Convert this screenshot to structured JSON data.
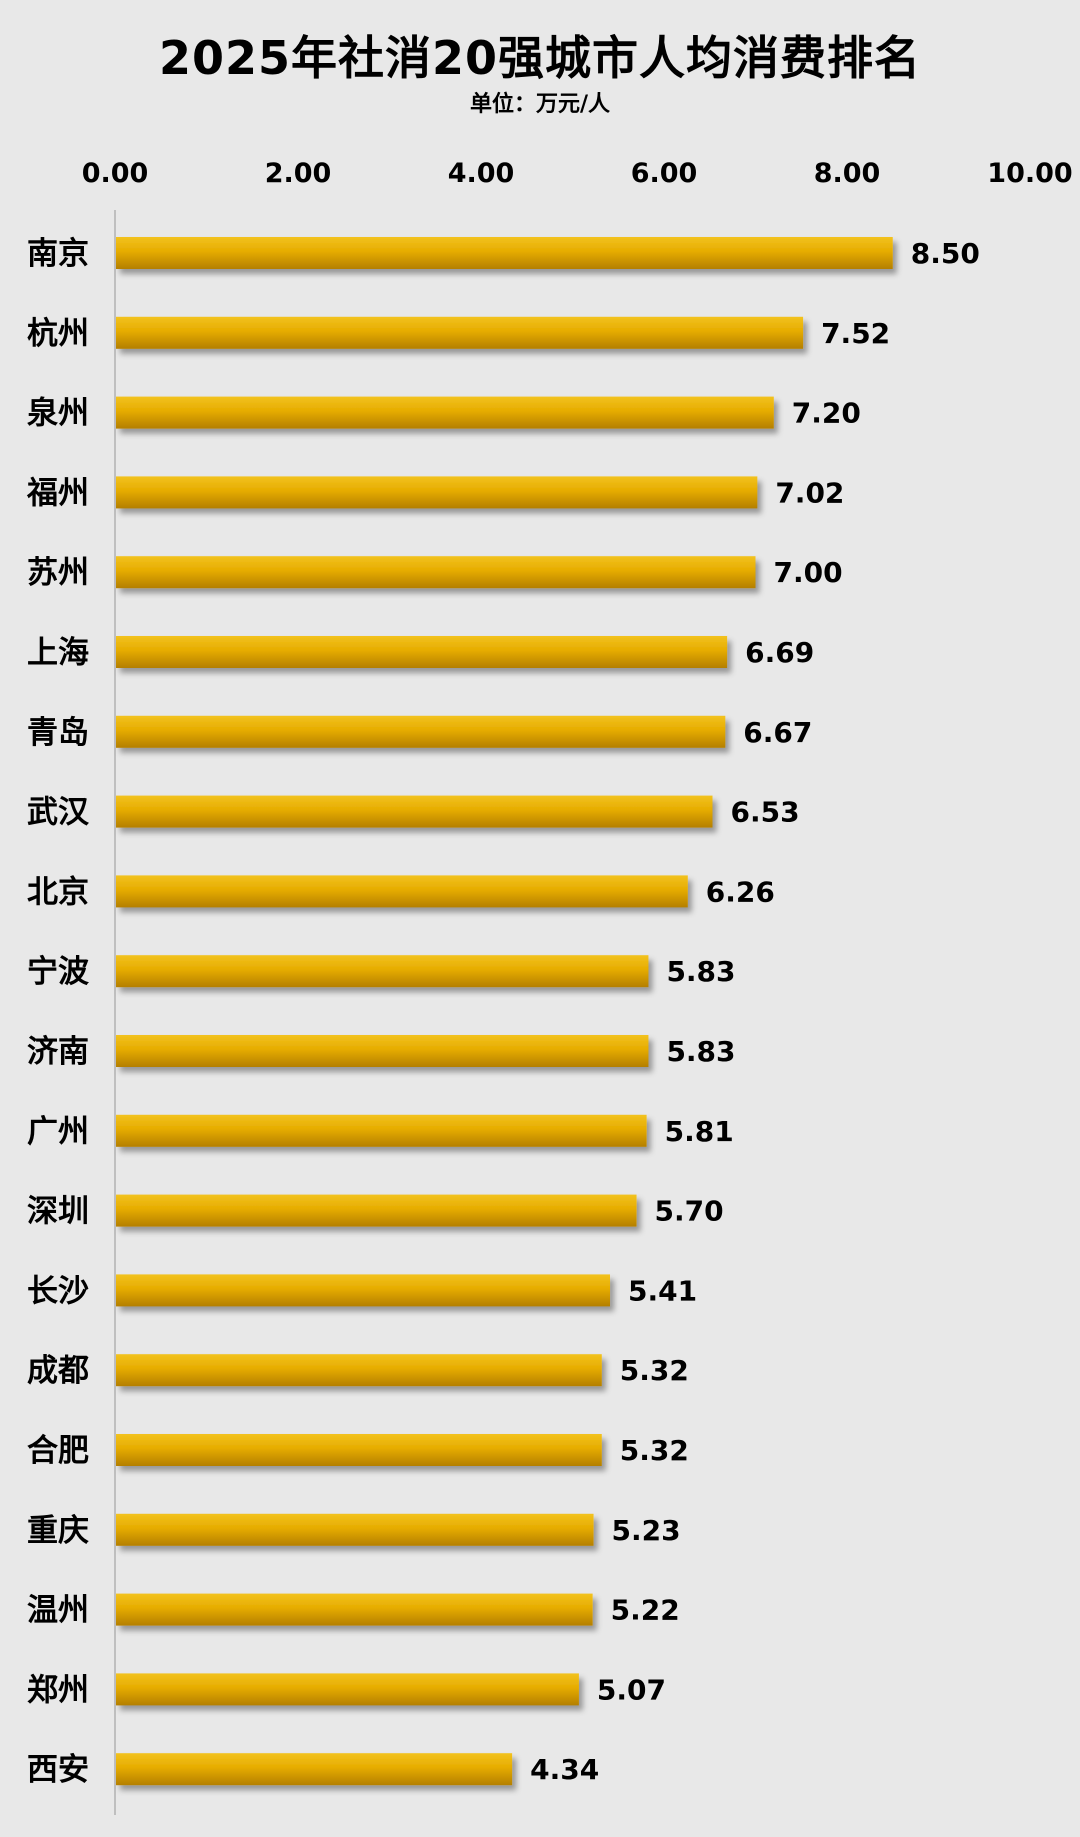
{
  "chart_data": {
    "type": "bar",
    "orientation": "horizontal",
    "title": "2025年社消20强城市人均消费排名",
    "subtitle": "单位：万元/人",
    "xlim": [
      0,
      10
    ],
    "x_ticks": [
      "0.00",
      "2.00",
      "4.00",
      "6.00",
      "8.00",
      "10.00"
    ],
    "x_axis_position": "top",
    "grid": false,
    "legend": "none",
    "categories": [
      "南京",
      "杭州",
      "泉州",
      "福州",
      "苏州",
      "上海",
      "青岛",
      "武汉",
      "北京",
      "宁波",
      "济南",
      "广州",
      "深圳",
      "长沙",
      "成都",
      "合肥",
      "重庆",
      "温州",
      "郑州",
      "西安"
    ],
    "values": [
      8.5,
      7.52,
      7.2,
      7.02,
      7.0,
      6.69,
      6.67,
      6.53,
      6.26,
      5.83,
      5.83,
      5.81,
      5.7,
      5.41,
      5.32,
      5.32,
      5.23,
      5.22,
      5.07,
      4.34
    ],
    "value_labels": [
      "8.50",
      "7.52",
      "7.20",
      "7.02",
      "7.00",
      "6.69",
      "6.67",
      "6.53",
      "6.26",
      "5.83",
      "5.83",
      "5.81",
      "5.70",
      "5.41",
      "5.32",
      "5.32",
      "5.23",
      "5.22",
      "5.07",
      "4.34"
    ],
    "colors": {
      "background": "#e8e8e8",
      "bar_top": "#f2c21e",
      "bar_mid": "#e6ac00",
      "bar_bottom": "#b47f00",
      "axis_line": "#bfbfbf",
      "text": "#000000"
    }
  }
}
